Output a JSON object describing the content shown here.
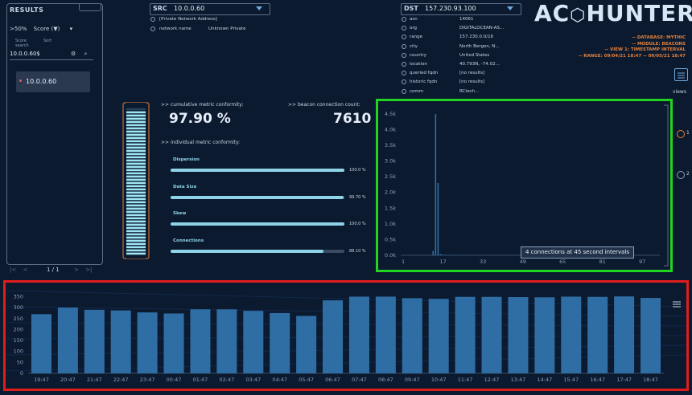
{
  "left_panel": {
    "title": "RESULTS",
    "threshold": ">50%",
    "threshold_caret": "▾",
    "sort_field": "Score (▼)",
    "sort_caret": "▾",
    "score_label": "Score",
    "sort_label": "Sort",
    "search_label": "search",
    "search_value": "10.0.0.60$",
    "results": [
      {
        "ip": "10.0.0.60"
      }
    ],
    "pager": {
      "first": "|<",
      "prev": "<",
      "page": "1 / 1",
      "next": ">",
      "last": ">|"
    }
  },
  "src": {
    "label": "SRC",
    "ip": "10.0.0.60",
    "rows": [
      {
        "key": "[Private Network Address]",
        "value": ""
      },
      {
        "key": "network name",
        "value": "Unknown Private"
      }
    ]
  },
  "dst": {
    "label": "DST",
    "ip": "157.230.93.100",
    "rows": [
      {
        "key": "asn",
        "value": "14061"
      },
      {
        "key": "org",
        "value": "DIGITALOCEAN-AS..."
      },
      {
        "key": "range",
        "value": "157.230.0.0/16"
      },
      {
        "key": "city",
        "value": "North Bergen, N..."
      },
      {
        "key": "country",
        "value": "United States"
      },
      {
        "key": "location",
        "value": "40.793N, -74.02..."
      },
      {
        "key": "queried fqdn",
        "value": "[no results]"
      },
      {
        "key": "historic fqdn",
        "value": "[no results]"
      },
      {
        "key": "comm",
        "value": "RCtech..."
      }
    ]
  },
  "logo": {
    "left": "AC",
    "right": "HUNTER"
  },
  "context": {
    "database": "-- DATABASE: MYTHIC",
    "module": "-- MODULE: BEACONS",
    "view": "-- VIEW 1: TIMESTAMP INTERVAL",
    "range": "-- RANGE: 09/04/21 18:47 -- 09/05/21 18:47"
  },
  "views": {
    "label": "views",
    "items": [
      "1",
      "2"
    ]
  },
  "metrics": {
    "cumulative_label": ">> cumulative metric conformity:",
    "cumulative_value": "97.90 %",
    "count_label": ">> beacon connection count:",
    "count_value": "7610",
    "individual_label": ">> individual metric conformity:",
    "bars": [
      {
        "name": "Dispersion",
        "value": "100.0 %",
        "pct": 100
      },
      {
        "name": "Data Size",
        "value": "99.70 %",
        "pct": 99.7
      },
      {
        "name": "Skew",
        "value": "100.0 %",
        "pct": 100
      },
      {
        "name": "Connections",
        "value": "88.10 %",
        "pct": 88.1
      }
    ],
    "gauge_pct": 97.9
  },
  "accent": {
    "green": "#22d322",
    "red": "#e01d1d",
    "cyan": "#8fd3e8",
    "orange": "#e5803a",
    "bar": "#2f6ea5"
  },
  "chart_data": [
    {
      "type": "bar",
      "title": "",
      "xlabel": "",
      "ylabel": "",
      "x_ticks": [
        "1",
        "17",
        "33",
        "49",
        "65",
        "81",
        "97"
      ],
      "y_ticks": [
        "0.0k",
        "0.5k",
        "1.0k",
        "1.5k",
        "2.0k",
        "2.5k",
        "3.0k",
        "3.5k",
        "4.0k",
        "4.5k"
      ],
      "ylim": [
        0,
        4700
      ],
      "xlim": [
        0,
        104
      ],
      "series": [
        {
          "x": [
            13,
            14,
            15,
            16,
            17,
            18,
            19,
            20,
            22,
            24,
            26,
            28,
            30,
            34,
            40,
            45
          ],
          "values": [
            140,
            4500,
            2300,
            40,
            20,
            15,
            12,
            10,
            8,
            7,
            6,
            6,
            5,
            5,
            4,
            4
          ]
        }
      ],
      "tooltip": "4 connections at 45 second intervals"
    },
    {
      "type": "bar",
      "title": "",
      "xlabel": "",
      "ylabel": "",
      "y_ticks": [
        "0",
        "50",
        "100",
        "150",
        "200",
        "250",
        "300",
        "350"
      ],
      "ylim": [
        0,
        370
      ],
      "categories": [
        "19:47",
        "20:47",
        "21:47",
        "22:47",
        "23:47",
        "00:47",
        "01:47",
        "02:47",
        "03:47",
        "04:47",
        "05:47",
        "06:47",
        "07:47",
        "08:47",
        "09:47",
        "10:47",
        "11:47",
        "12:47",
        "13:47",
        "14:47",
        "15:47",
        "16:47",
        "17:47",
        "18:47"
      ],
      "values": [
        270,
        300,
        290,
        287,
        278,
        273,
        292,
        292,
        285,
        275,
        262,
        333,
        350,
        350,
        343,
        340,
        349,
        349,
        348,
        347,
        350,
        349,
        351,
        344
      ],
      "menu_icon": "hamburger-icon"
    }
  ]
}
